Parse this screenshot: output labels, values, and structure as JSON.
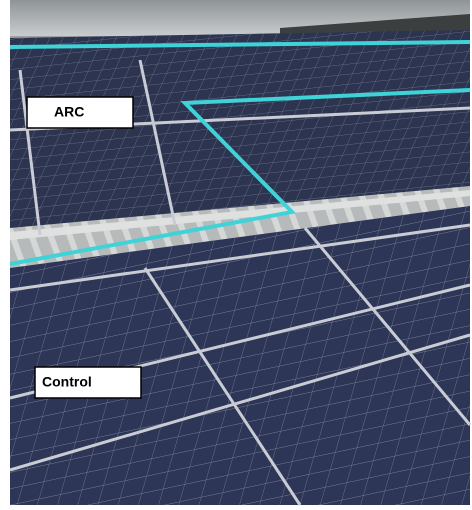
{
  "labels": {
    "arc": "ARC",
    "control": "Control"
  }
}
